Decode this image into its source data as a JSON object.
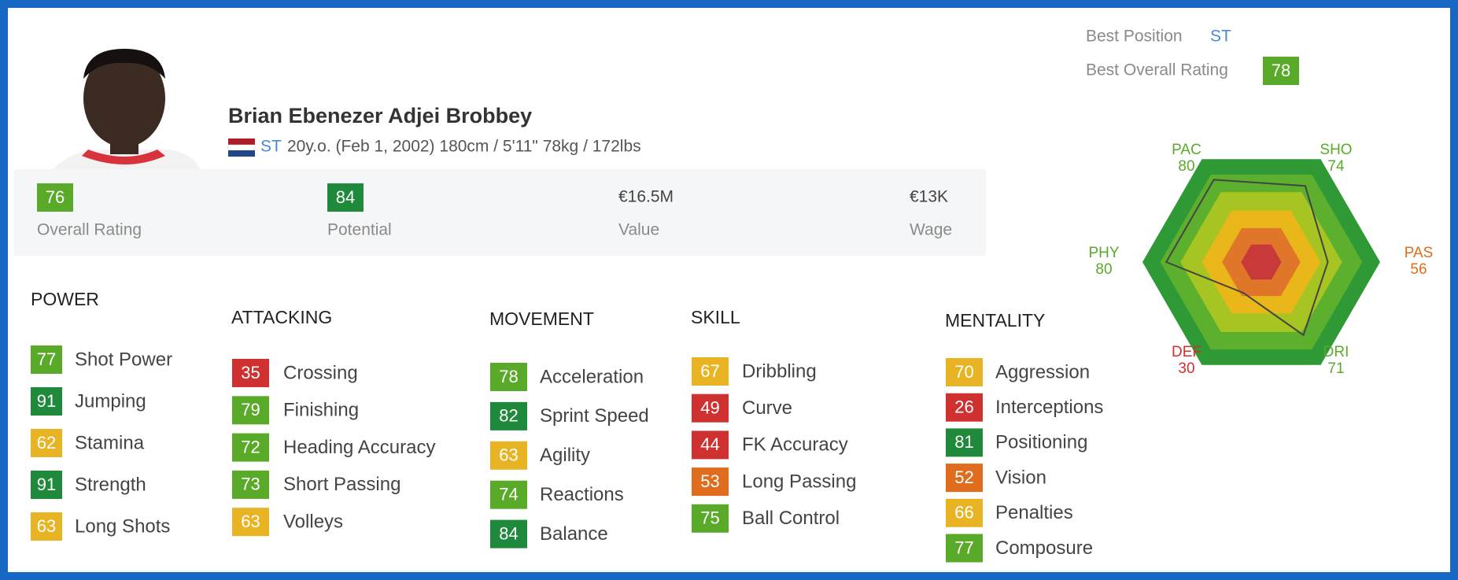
{
  "best_position": {
    "label": "Best Position",
    "value": "ST"
  },
  "best_overall": {
    "label": "Best Overall Rating",
    "value": 78
  },
  "player": {
    "name": "Brian Ebenezer Adjei Brobbey",
    "position": "ST",
    "details": "20y.o. (Feb 1, 2002) 180cm / 5'11\" 78kg / 172lbs"
  },
  "summary": [
    {
      "value": 76,
      "label": "Overall Rating"
    },
    {
      "value": 84,
      "label": "Potential"
    },
    {
      "value": "€16.5M",
      "label": "Value"
    },
    {
      "value": "€13K",
      "label": "Wage"
    }
  ],
  "radar": {
    "rlim": [
      0,
      100
    ],
    "axes": [
      {
        "name": "PAC",
        "value": 80
      },
      {
        "name": "SHO",
        "value": 74
      },
      {
        "name": "PAS",
        "value": 56
      },
      {
        "name": "DRI",
        "value": 71
      },
      {
        "name": "DEF",
        "value": 30
      },
      {
        "name": "PHY",
        "value": 80
      }
    ]
  },
  "groups": [
    {
      "title": "POWER",
      "stats": [
        {
          "name": "Shot Power",
          "value": 77
        },
        {
          "name": "Jumping",
          "value": 91
        },
        {
          "name": "Stamina",
          "value": 62
        },
        {
          "name": "Strength",
          "value": 91
        },
        {
          "name": "Long Shots",
          "value": 63
        }
      ]
    },
    {
      "title": "ATTACKING",
      "stats": [
        {
          "name": "Crossing",
          "value": 35
        },
        {
          "name": "Finishing",
          "value": 79
        },
        {
          "name": "Heading Accuracy",
          "value": 72
        },
        {
          "name": "Short Passing",
          "value": 73
        },
        {
          "name": "Volleys",
          "value": 63
        }
      ]
    },
    {
      "title": "MOVEMENT",
      "stats": [
        {
          "name": "Acceleration",
          "value": 78
        },
        {
          "name": "Sprint Speed",
          "value": 82
        },
        {
          "name": "Agility",
          "value": 63
        },
        {
          "name": "Reactions",
          "value": 74
        },
        {
          "name": "Balance",
          "value": 84
        }
      ]
    },
    {
      "title": "SKILL",
      "stats": [
        {
          "name": "Dribbling",
          "value": 67
        },
        {
          "name": "Curve",
          "value": 49
        },
        {
          "name": "FK Accuracy",
          "value": 44
        },
        {
          "name": "Long Passing",
          "value": 53
        },
        {
          "name": "Ball Control",
          "value": 75
        }
      ]
    },
    {
      "title": "MENTALITY",
      "stats": [
        {
          "name": "Aggression",
          "value": 70
        },
        {
          "name": "Interceptions",
          "value": 26
        },
        {
          "name": "Positioning",
          "value": 81
        },
        {
          "name": "Vision",
          "value": 52
        },
        {
          "name": "Penalties",
          "value": 66
        },
        {
          "name": "Composure",
          "value": 77
        }
      ]
    }
  ]
}
